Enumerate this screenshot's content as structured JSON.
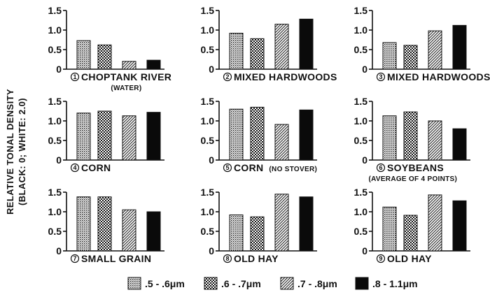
{
  "chart_data": {
    "type": "bar",
    "ylabel_line1": "RELATIVE TONAL DENSITY",
    "ylabel_line2": "(BLACK: 0; WHITE: 2.0)",
    "ylim": [
      0,
      1.5
    ],
    "yticks": [
      "0",
      "0.5",
      "1.0",
      "1.5"
    ],
    "legend_position": "bottom",
    "series": [
      {
        "name": ".5 - .6μm",
        "pattern": "dots-fine"
      },
      {
        "name": ".6 - .7μm",
        "pattern": "checker"
      },
      {
        "name": ".7 - .8μm",
        "pattern": "diagonal"
      },
      {
        "name": ".8 - 1.1μm",
        "pattern": "solid"
      }
    ],
    "panels": [
      {
        "number": "1",
        "title": "CHOPTANK RIVER",
        "subtitle": "(WATER)",
        "subtitle_inline": false,
        "values": [
          0.73,
          0.62,
          0.2,
          0.23
        ]
      },
      {
        "number": "2",
        "title": "MIXED HARDWOODS",
        "subtitle": "",
        "subtitle_inline": false,
        "values": [
          0.92,
          0.78,
          1.15,
          1.28
        ]
      },
      {
        "number": "3",
        "title": "MIXED HARDWOODS",
        "subtitle": "",
        "subtitle_inline": false,
        "values": [
          0.68,
          0.61,
          0.98,
          1.12
        ]
      },
      {
        "number": "4",
        "title": "CORN",
        "subtitle": "",
        "subtitle_inline": false,
        "values": [
          1.2,
          1.25,
          1.13,
          1.22
        ]
      },
      {
        "number": "5",
        "title": "CORN",
        "subtitle": "(NO STOVER)",
        "subtitle_inline": true,
        "values": [
          1.3,
          1.35,
          0.91,
          1.28
        ]
      },
      {
        "number": "6",
        "title": "SOYBEANS",
        "subtitle": "(AVERAGE OF 4 POINTS)",
        "subtitle_inline": false,
        "values": [
          1.13,
          1.23,
          1.0,
          0.8
        ]
      },
      {
        "number": "7",
        "title": "SMALL GRAIN",
        "subtitle": "",
        "subtitle_inline": false,
        "values": [
          1.38,
          1.38,
          1.05,
          1.0
        ]
      },
      {
        "number": "8",
        "title": "OLD HAY",
        "subtitle": "",
        "subtitle_inline": false,
        "values": [
          0.92,
          0.87,
          1.45,
          1.38
        ]
      },
      {
        "number": "9",
        "title": "OLD HAY",
        "subtitle": "",
        "subtitle_inline": false,
        "values": [
          1.12,
          0.91,
          1.43,
          1.28
        ]
      }
    ]
  }
}
